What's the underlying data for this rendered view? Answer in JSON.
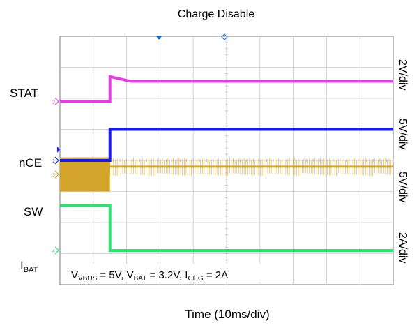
{
  "chart_data": {
    "type": "line",
    "title": "Charge Disable",
    "xlabel": "Time (10ms/div)",
    "grid": true,
    "x_divisions": 10,
    "y_divisions": 8,
    "trigger_division": 1.5,
    "channels": [
      {
        "id": "STAT",
        "label": "STAT",
        "marker": "2",
        "scale": "2V/div",
        "color": "#e040e0",
        "pre_level_div": 5.9,
        "post_level_div": 6.7,
        "post_settled_div": 6.55
      },
      {
        "id": "nCE",
        "label": "nCE",
        "marker": "1",
        "scale": "5V/div",
        "color": "#1a1aee",
        "pre_level_div": 4.0,
        "post_level_div": 5.0
      },
      {
        "id": "SW",
        "label": "SW",
        "marker": "3",
        "scale": "5V/div",
        "color": "#d4a52a",
        "pre_band_div": [
          3.0,
          4.1
        ],
        "post_center_div": 3.8,
        "post_band_div": [
          3.5,
          4.1
        ]
      },
      {
        "id": "IBAT",
        "label_main": "I",
        "label_sub": "BAT",
        "marker": "4",
        "scale": "2A/div",
        "color": "#2ee070",
        "pre_level_div": 2.55,
        "post_level_div": 1.1
      }
    ],
    "annotation": {
      "parts": [
        {
          "text": "V",
          "sub": "VBUS"
        },
        {
          "text": " = 5V, V"
        },
        {
          "text": "",
          "sub": "BAT"
        },
        {
          "text": " = 3.2V, I"
        },
        {
          "text": "",
          "sub": "CHG"
        },
        {
          "text": " = 2A"
        }
      ]
    }
  }
}
